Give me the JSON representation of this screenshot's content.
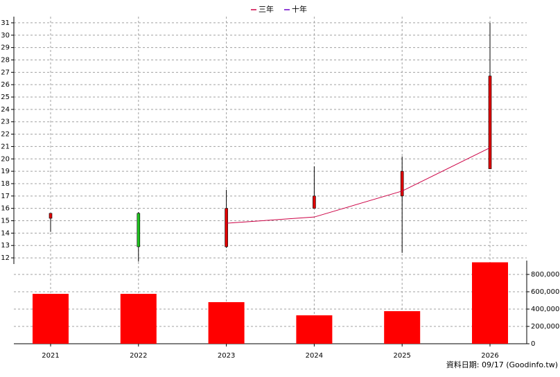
{
  "chart_data": {
    "type": "candlestick",
    "categories": [
      "2021",
      "2022",
      "2023",
      "2024",
      "2025",
      "2026"
    ],
    "open": [
      15.2,
      15.6,
      12.9,
      16.0,
      17.0,
      19.2
    ],
    "high": [
      15.6,
      15.7,
      17.5,
      19.4,
      20.2,
      31.0
    ],
    "low": [
      14.1,
      11.7,
      12.8,
      16.0,
      12.4,
      19.2
    ],
    "close": [
      15.6,
      12.9,
      16.0,
      17.0,
      19.0,
      26.7
    ],
    "up_color": "#e00000",
    "down_color": "#20c020",
    "series": [
      {
        "name": "三年",
        "color": "#cc0044",
        "values": [
          null,
          null,
          14.8,
          15.3,
          17.4,
          20.9
        ]
      },
      {
        "name": "十年",
        "color": "#6a00c8",
        "values": [
          null,
          null,
          null,
          null,
          null,
          null
        ]
      }
    ],
    "volume": {
      "color": "#ff0000",
      "values": [
        576000,
        576000,
        480000,
        328000,
        376000,
        940000
      ]
    },
    "ylim": [
      11.5,
      31.5
    ],
    "yticks": [
      12,
      13,
      14,
      15,
      16,
      17,
      18,
      19,
      20,
      21,
      22,
      23,
      24,
      25,
      26,
      27,
      28,
      29,
      30,
      31
    ],
    "y2lim": [
      0,
      960000
    ],
    "y2ticks": [
      0,
      {
        "value": 200000,
        "label": "200,000"
      },
      {
        "value": 400000,
        "label": "400,000"
      },
      {
        "value": 600000,
        "label": "600,000"
      },
      {
        "value": 800000,
        "label": "800,000"
      }
    ],
    "grid": true,
    "legend": "top",
    "footer": "資料日期: 09/17  (Goodinfo.tw)"
  }
}
